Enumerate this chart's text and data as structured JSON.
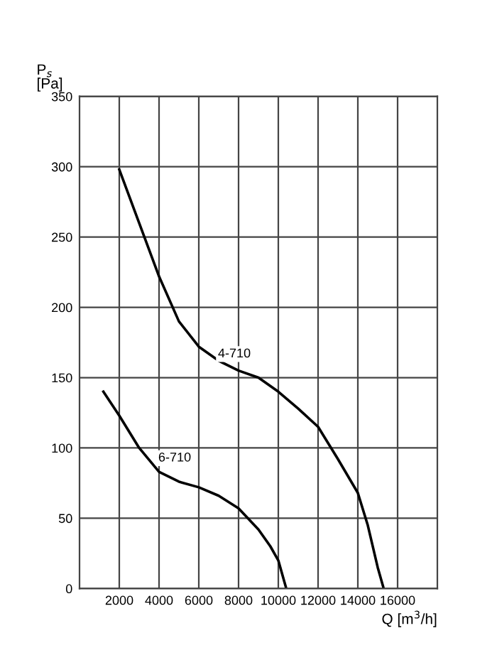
{
  "chart_data": {
    "type": "line",
    "xlabel": "Q [m$^{3}$/h]",
    "ylabel": "P$_{s}$\n[Pa]",
    "xlim": [
      0,
      18000
    ],
    "ylim": [
      0,
      350
    ],
    "xticks": [
      2000,
      4000,
      6000,
      8000,
      10000,
      12000,
      14000,
      16000
    ],
    "yticks": [
      0,
      50,
      100,
      150,
      200,
      250,
      300,
      350
    ],
    "grid": true,
    "legend": false,
    "series": [
      {
        "name": "4-710",
        "color": "#000000",
        "x": [
          2000,
          3000,
          4000,
          5000,
          6000,
          7000,
          8000,
          9000,
          10000,
          11000,
          12000,
          13000,
          14000,
          14500,
          15000,
          15300
        ],
        "values": [
          298,
          260,
          222,
          190,
          172,
          162,
          155,
          150,
          140,
          128,
          115,
          92,
          68,
          45,
          15,
          0
        ]
      },
      {
        "name": "6-710",
        "color": "#000000",
        "x": [
          1200,
          2000,
          3000,
          4000,
          5000,
          6000,
          7000,
          8000,
          9000,
          9600,
          10000,
          10300,
          10400
        ],
        "values": [
          140,
          123,
          100,
          83,
          76,
          72,
          66,
          57,
          42,
          30,
          20,
          5,
          0
        ]
      }
    ]
  }
}
